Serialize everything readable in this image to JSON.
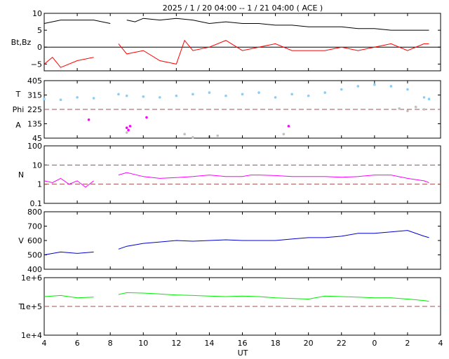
{
  "title": "2025  /   1 / 20    04:00 --  1 / 21   04:00 ( ACE )",
  "x_axis": {
    "label": "UT",
    "ticks": [
      "4",
      "6",
      "8",
      "10",
      "12",
      "14",
      "16",
      "18",
      "20",
      "22",
      "0",
      "2",
      "4"
    ]
  },
  "colors": {
    "bt": "#000000",
    "bz": "#ff0000",
    "theta": "#87cefa",
    "phi": "#c0c0c0",
    "density": "#ff00ff",
    "speed": "#0000cd",
    "temperature": "#00ee00",
    "reference": "#a05050"
  },
  "chart_data": [
    {
      "type": "line",
      "panel": "magnetic-field",
      "ylabel": "Bt,Bz",
      "yticks": [
        "10",
        "5",
        "0",
        "−5"
      ],
      "ylim": [
        -7,
        10
      ],
      "x_range": [
        4,
        28
      ],
      "series": [
        {
          "name": "Bt",
          "x": [
            4,
            5,
            6,
            7,
            8,
            8.4,
            9,
            9.5,
            10,
            11,
            12,
            13,
            14,
            15,
            16,
            17,
            18,
            19,
            20,
            21,
            22,
            23,
            24,
            25,
            26,
            27,
            27.3
          ],
          "y": [
            7,
            8,
            8,
            8,
            7,
            null,
            8,
            7.5,
            8.5,
            8,
            8.5,
            8,
            7,
            7.5,
            7,
            7,
            6.5,
            6.5,
            6,
            6,
            6,
            5.5,
            5.5,
            5,
            5,
            5,
            5
          ]
        },
        {
          "name": "Bz",
          "x": [
            4,
            4.5,
            5,
            6,
            7,
            7.5,
            8.5,
            9,
            10,
            11,
            12,
            12.5,
            13,
            14,
            15,
            16,
            17,
            18,
            19,
            20,
            21,
            22,
            23,
            24,
            25,
            26,
            27,
            27.3
          ],
          "y": [
            -5,
            -3,
            -6,
            -4,
            -3,
            null,
            1,
            -2,
            -1,
            -4,
            -5,
            2,
            -1,
            0,
            2,
            -1,
            0,
            1,
            -1,
            -1,
            -1,
            0,
            -1,
            0,
            1,
            -1,
            1,
            1
          ]
        }
      ],
      "reference_lines": [
        0
      ]
    },
    {
      "type": "scatter",
      "panel": "field-direction",
      "ylabel_top": "T",
      "ylabel_mid": "Phi",
      "ylabel_bottom": "A",
      "yticks": [
        "405",
        "315",
        "225",
        "135",
        "45"
      ],
      "ylim": [
        45,
        405
      ],
      "reference_lines": [
        225
      ],
      "series": [
        {
          "name": "Theta",
          "x": [
            4,
            5,
            6,
            7,
            8.5,
            9,
            10,
            11,
            12,
            13,
            14,
            15,
            16,
            17,
            18,
            19,
            20,
            21,
            22,
            23,
            24,
            25,
            26,
            27,
            27.3
          ],
          "y": [
            290,
            285,
            300,
            295,
            320,
            310,
            305,
            300,
            310,
            320,
            330,
            310,
            320,
            330,
            300,
            320,
            310,
            330,
            350,
            370,
            380,
            370,
            350,
            300,
            290
          ]
        },
        {
          "name": "Phi",
          "x": [
            9,
            12.5,
            13,
            14,
            14.5,
            18.5,
            25.5,
            26,
            26.5,
            27
          ],
          "y": [
            80,
            70,
            50,
            55,
            60,
            70,
            230,
            215,
            240,
            225
          ]
        },
        {
          "name": "A",
          "x": [
            9,
            9.1,
            9.2,
            6.7,
            10.2,
            18.8
          ],
          "y": [
            110,
            95,
            120,
            160,
            175,
            120
          ]
        }
      ]
    },
    {
      "type": "line",
      "panel": "density",
      "ylabel": "N",
      "yticks": [
        "100",
        "10",
        "1",
        "0.1"
      ],
      "ylim": [
        0.1,
        100
      ],
      "log": true,
      "reference_lines": [
        1,
        10
      ],
      "series": [
        {
          "name": "N",
          "x": [
            4,
            4.5,
            5,
            5.5,
            6,
            6.5,
            7,
            7.5,
            8.5,
            9,
            10,
            11,
            12,
            13,
            14,
            15,
            16,
            16.5,
            17,
            18,
            19,
            20,
            21,
            22,
            23,
            24,
            25,
            26,
            27,
            27.3
          ],
          "y": [
            1.5,
            1.2,
            2,
            1,
            1.5,
            0.7,
            1.5,
            null,
            3,
            4,
            2.5,
            2,
            2.2,
            2.5,
            3,
            2.5,
            2.5,
            3,
            3,
            2.8,
            2.5,
            2.5,
            2.5,
            2.3,
            2.5,
            3,
            3,
            2,
            1.5,
            1.2
          ]
        }
      ]
    },
    {
      "type": "line",
      "panel": "speed",
      "ylabel": "V",
      "yticks": [
        "800",
        "700",
        "600",
        "500",
        "400"
      ],
      "ylim": [
        400,
        800
      ],
      "series": [
        {
          "name": "V",
          "x": [
            4,
            5,
            6,
            7,
            7.5,
            8.5,
            9,
            10,
            11,
            12,
            13,
            14,
            15,
            16,
            17,
            18,
            19,
            20,
            21,
            22,
            23,
            24,
            25,
            26,
            27,
            27.3
          ],
          "y": [
            500,
            520,
            510,
            520,
            null,
            540,
            560,
            580,
            590,
            600,
            595,
            600,
            605,
            600,
            600,
            600,
            610,
            620,
            620,
            630,
            650,
            650,
            660,
            670,
            630,
            620
          ]
        }
      ]
    },
    {
      "type": "line",
      "panel": "temperature",
      "ylabel": "T",
      "yticks": [
        "1e+6",
        "1e+5",
        "1e+4"
      ],
      "ylim": [
        10000,
        1000000
      ],
      "log": true,
      "reference_lines": [
        100000
      ],
      "series": [
        {
          "name": "T",
          "x": [
            4,
            5,
            6,
            7,
            7.5,
            8.5,
            9,
            10,
            11,
            12,
            13,
            14,
            15,
            16,
            17,
            18,
            19,
            20,
            21,
            22,
            23,
            24,
            25,
            26,
            27,
            27.3
          ],
          "y": [
            220000,
            240000,
            200000,
            210000,
            null,
            260000,
            300000,
            290000,
            270000,
            250000,
            240000,
            230000,
            220000,
            230000,
            220000,
            200000,
            190000,
            180000,
            230000,
            220000,
            210000,
            200000,
            200000,
            180000,
            160000,
            150000
          ]
        }
      ]
    }
  ]
}
